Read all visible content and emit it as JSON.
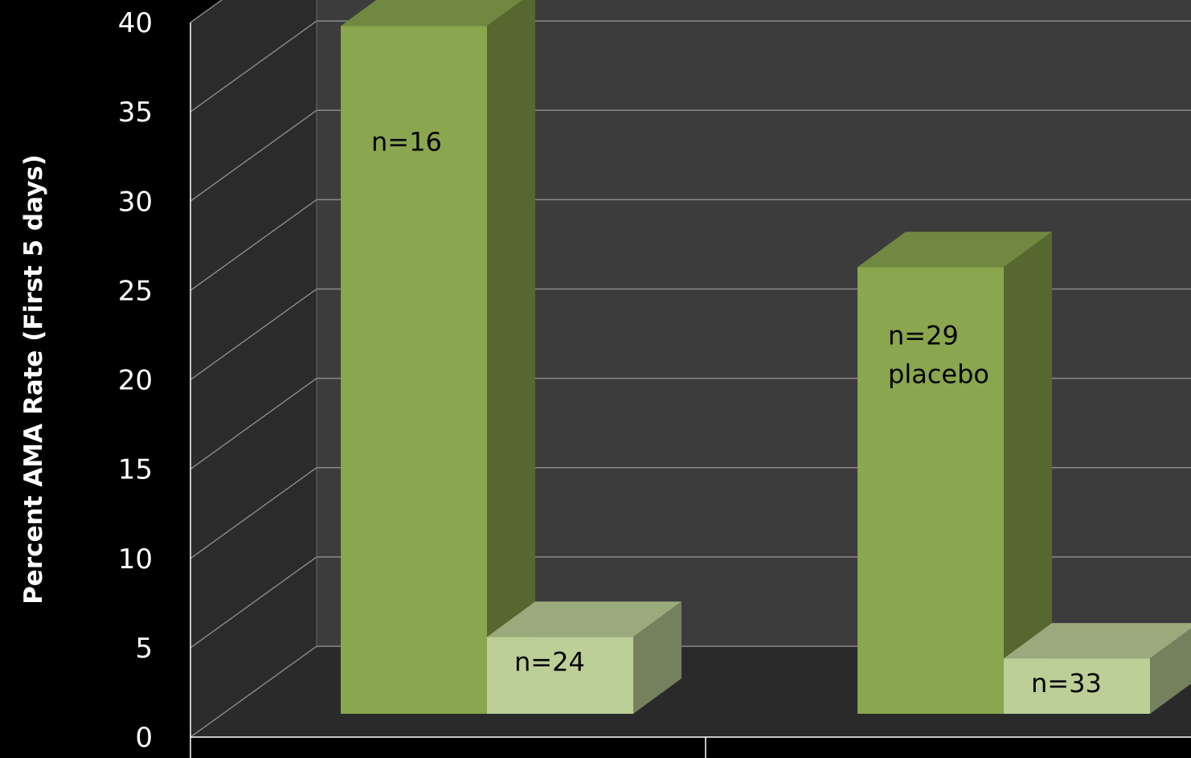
{
  "chart_data": {
    "type": "bar",
    "title": "",
    "xlabel": "",
    "ylabel": "Percent AMA Rate (First 5 days)",
    "ylim": [
      0,
      40
    ],
    "yticks": [
      "0",
      "5",
      "10",
      "15",
      "20",
      "25",
      "30",
      "35",
      "40"
    ],
    "categories": [
      "",
      ""
    ],
    "grid": true,
    "series": [
      {
        "values": [
          38.5,
          25.0
        ],
        "color": "#8aa64e",
        "labels": [
          [
            "n=16"
          ],
          [
            "n=29",
            "placebo"
          ]
        ]
      },
      {
        "values": [
          4.3,
          3.1
        ],
        "color": "#bccf97",
        "labels": [
          [
            "n=24"
          ],
          [
            "n=33"
          ]
        ]
      }
    ]
  }
}
